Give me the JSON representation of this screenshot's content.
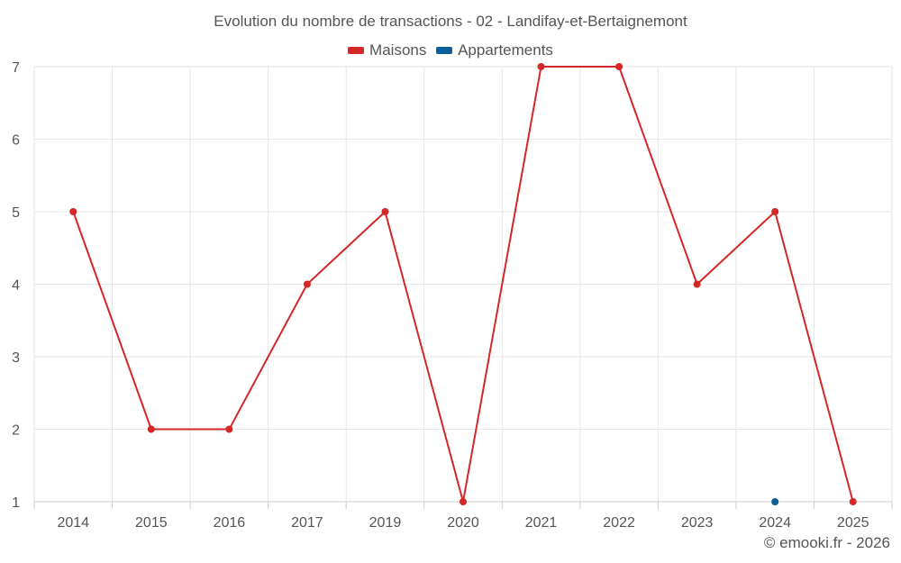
{
  "chart_data": {
    "type": "line",
    "title": "Evolution du nombre de transactions - 02 - Landifay-et-Bertaignemont",
    "categories": [
      "2014",
      "2015",
      "2016",
      "2017",
      "2019",
      "2020",
      "2021",
      "2022",
      "2023",
      "2024",
      "2025"
    ],
    "series": [
      {
        "name": "Maisons",
        "color": "#d62728",
        "values": [
          5,
          2,
          2,
          4,
          5,
          1,
          7,
          7,
          4,
          5,
          1
        ]
      },
      {
        "name": "Appartements",
        "color": "#0a5f96",
        "values": [
          null,
          null,
          null,
          null,
          null,
          null,
          null,
          null,
          null,
          1,
          null
        ]
      }
    ],
    "y_ticks": [
      "1",
      "2",
      "3",
      "4",
      "5",
      "6",
      "7"
    ],
    "ylim": [
      1,
      7
    ],
    "grid": true,
    "legend_position": "top-center"
  },
  "footer": {
    "credit": "© emooki.fr - 2026"
  }
}
